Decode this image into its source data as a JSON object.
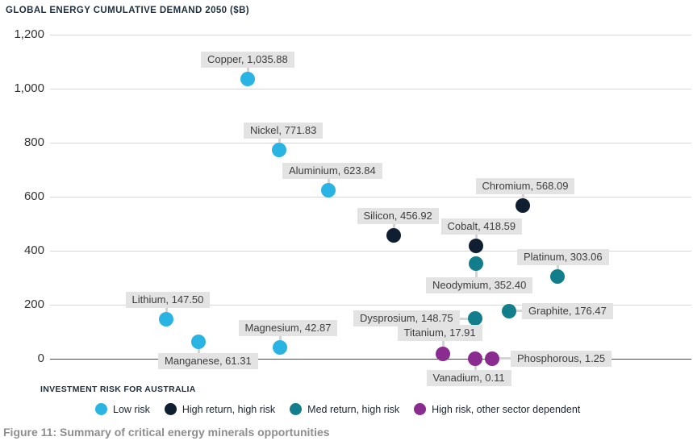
{
  "page": {
    "title": "GLOBAL ENERGY CUMULATIVE DEMAND 2050 ($B)",
    "caption": "Figure 11: Summary of critical energy minerals opportunities"
  },
  "legend": {
    "title": "INVESTMENT RISK FOR AUSTRALIA",
    "items": [
      {
        "label": "Low risk",
        "risk": "low"
      },
      {
        "label": "High return, high risk",
        "risk": "high_return"
      },
      {
        "label": "Med return, high risk",
        "risk": "med_return"
      },
      {
        "label": "High risk, other sector dependent",
        "risk": "other_sector"
      }
    ]
  },
  "colors": {
    "low": "#29b4e4",
    "high_return": "#0f1e31",
    "med_return": "#137e8b",
    "other_sector": "#8a2b8f",
    "grid": "#d7d7d7",
    "zero_line": "#4a4a4a",
    "label_bg": "#e3e3e3",
    "label_text": "#3d3d3d"
  },
  "chart_data": {
    "type": "scatter",
    "title": "GLOBAL ENERGY CUMULATIVE DEMAND 2050 ($B)",
    "xlabel": "",
    "ylabel": "",
    "ylim": [
      0,
      1200
    ],
    "ytick_interval": 200,
    "ytick_labels": [
      "1,200",
      "1,000",
      "800",
      "600",
      "400",
      "200",
      "0"
    ],
    "grid": "horizontal",
    "legend_position": "bottom",
    "points": [
      {
        "name": "Copper",
        "value": 1035.88,
        "label": "Copper, 1,035.88",
        "risk": "low",
        "x": 307,
        "placement": "above",
        "dx": 0
      },
      {
        "name": "Nickel",
        "value": 771.83,
        "label": "Nickel, 771.83",
        "risk": "low",
        "x": 346,
        "placement": "above",
        "dx": 5
      },
      {
        "name": "Aluminium",
        "value": 623.84,
        "label": "Aluminium, 623.84",
        "risk": "low",
        "x": 407,
        "placement": "above",
        "dx": 5
      },
      {
        "name": "Lithium",
        "value": 147.5,
        "label": "Lithium, 147.50",
        "risk": "low",
        "x": 206,
        "placement": "above",
        "dx": 2
      },
      {
        "name": "Manganese",
        "value": 61.31,
        "label": "Manganese, 61.31",
        "risk": "low",
        "x": 246,
        "placement": "below",
        "dx": 12
      },
      {
        "name": "Magnesium",
        "value": 42.87,
        "label": "Magnesium, 42.87",
        "risk": "low",
        "x": 347,
        "placement": "above",
        "dx": 10
      },
      {
        "name": "Silicon",
        "value": 456.92,
        "label": "Silicon, 456.92",
        "risk": "high_return",
        "x": 488,
        "placement": "above",
        "dx": 5
      },
      {
        "name": "Chromium",
        "value": 568.09,
        "label": "Chromium, 568.09",
        "risk": "high_return",
        "x": 648,
        "placement": "above",
        "dx": 3
      },
      {
        "name": "Cobalt",
        "value": 418.59,
        "label": "Cobalt, 418.59",
        "risk": "high_return",
        "x": 590,
        "placement": "above",
        "dx": 7
      },
      {
        "name": "Neodymium",
        "value": 352.4,
        "label": "Neodymium, 352.40",
        "risk": "med_return",
        "x": 590,
        "placement": "below",
        "dx": 4,
        "gap": 17
      },
      {
        "name": "Platinum",
        "value": 303.06,
        "label": "Platinum, 303.06",
        "risk": "med_return",
        "x": 691,
        "placement": "above",
        "dx": 7
      },
      {
        "name": "Dysprosium",
        "value": 148.75,
        "label": "Dysprosium, 148.75",
        "risk": "med_return",
        "x": 589,
        "placement": "left",
        "gap": 19
      },
      {
        "name": "Graphite",
        "value": 176.47,
        "label": "Graphite, 176.47",
        "risk": "med_return",
        "x": 631,
        "placement": "right",
        "gap": 16
      },
      {
        "name": "Titanium",
        "value": 17.91,
        "label": "Titanium, 17.91",
        "risk": "other_sector",
        "x": 549,
        "placement": "above",
        "dx": -4,
        "gap": 16
      },
      {
        "name": "Vanadium",
        "value": 0.11,
        "label": "Vanadium, 0.11",
        "risk": "other_sector",
        "x": 589,
        "placement": "below",
        "dx": -8
      },
      {
        "name": "Phosphorous",
        "value": 1.25,
        "label": "Phosphorous, 1.25",
        "risk": "other_sector",
        "x": 610,
        "placement": "right",
        "gap": 23
      }
    ]
  }
}
